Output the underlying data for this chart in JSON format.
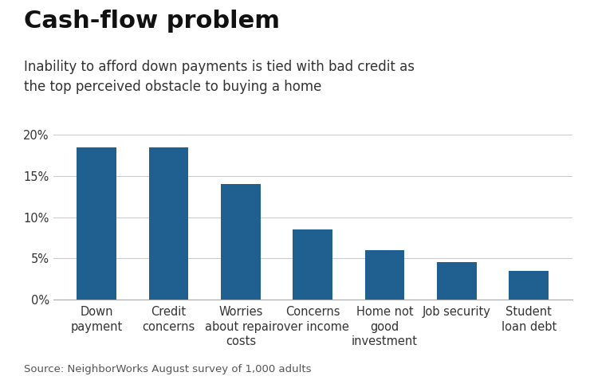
{
  "title": "Cash-flow problem",
  "subtitle": "Inability to afford down payments is tied with bad credit as\nthe top perceived obstacle to buying a home",
  "source": "Source: NeighborWorks August survey of 1,000 adults",
  "categories": [
    "Down\npayment",
    "Credit\nconcerns",
    "Worries\nabout repair\ncosts",
    "Concerns\nover income",
    "Home not\ngood\ninvestment",
    "Job security",
    "Student\nloan debt"
  ],
  "values": [
    18.5,
    18.5,
    14.0,
    8.5,
    6.0,
    4.5,
    3.5
  ],
  "bar_color": "#1F6090",
  "background_color": "#ffffff",
  "ylim": [
    0,
    21
  ],
  "yticks": [
    0,
    5,
    10,
    15,
    20
  ],
  "ytick_labels": [
    "0%",
    "5%",
    "10%",
    "15%",
    "20%"
  ],
  "title_fontsize": 22,
  "subtitle_fontsize": 12,
  "source_fontsize": 9.5,
  "tick_fontsize": 10.5,
  "bar_width": 0.55
}
